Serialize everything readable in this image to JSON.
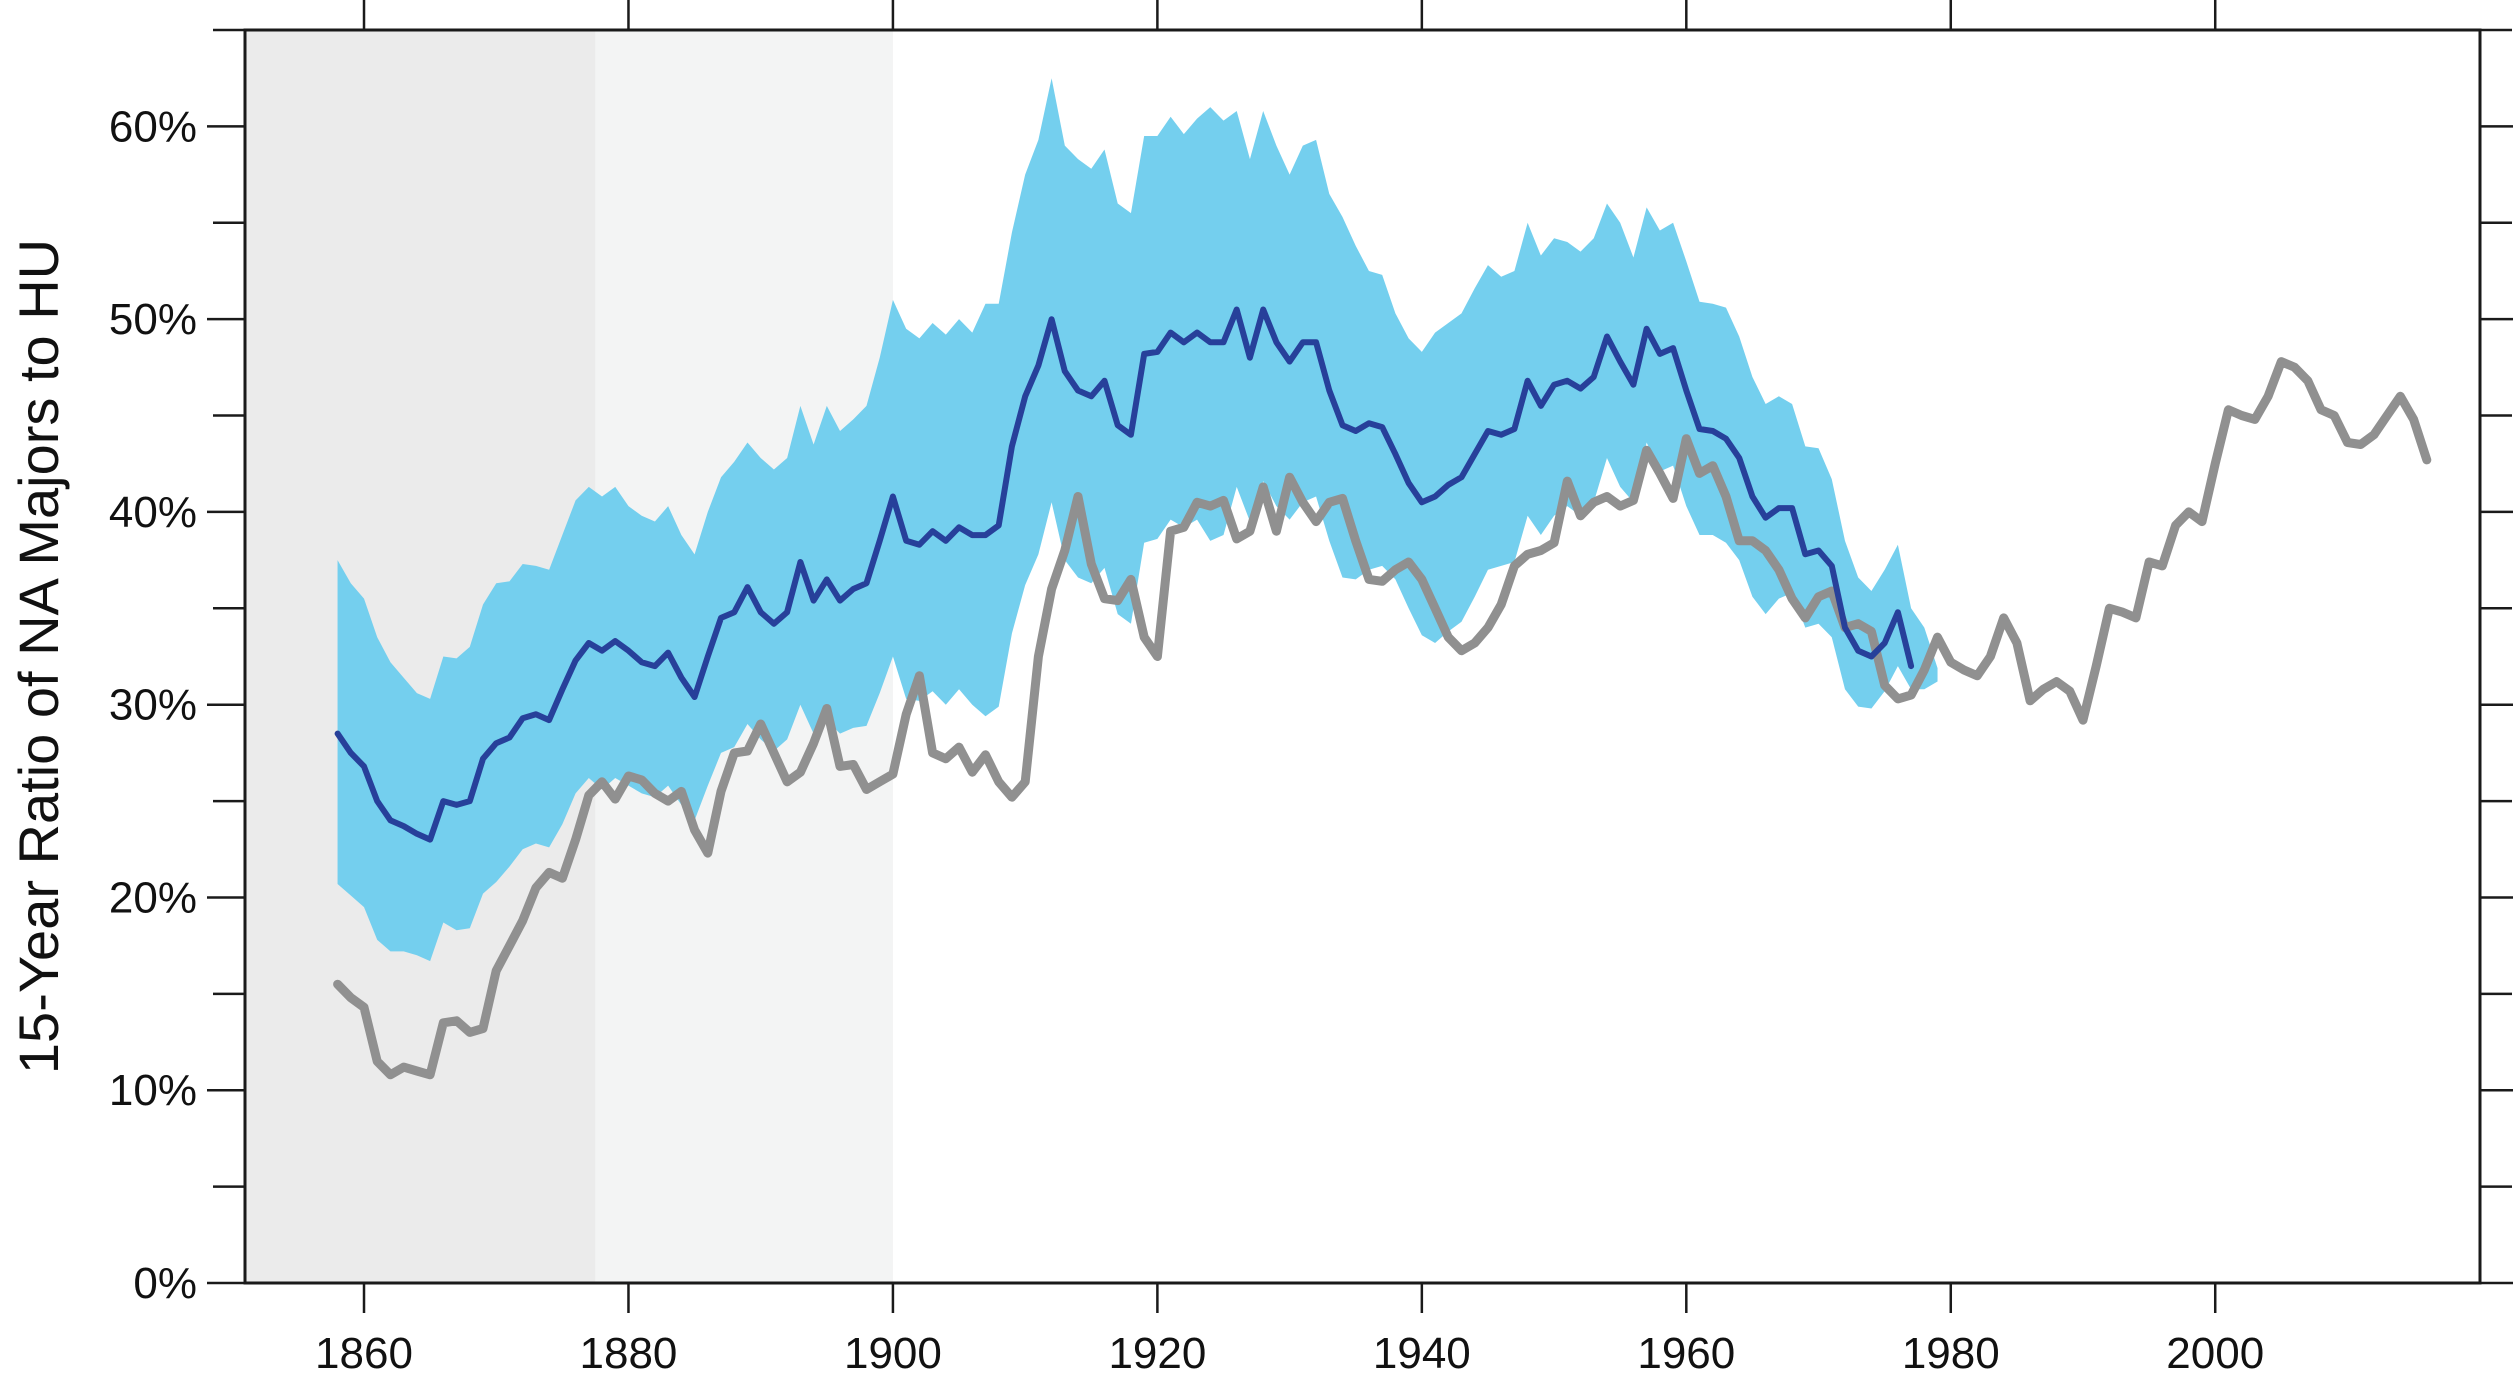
{
  "chart_data": {
    "type": "line",
    "title": "",
    "xlabel": "",
    "ylabel": "15-Year Ratio of NA Majors to HU",
    "xlim": [
      1851,
      2020
    ],
    "ylim": [
      0,
      65
    ],
    "xticks": [
      1860,
      1880,
      1900,
      1920,
      1940,
      1960,
      1980,
      2000
    ],
    "xtick_labels": [
      "1860",
      "1880",
      "1900",
      "1920",
      "1940",
      "1960",
      "1980",
      "2000"
    ],
    "yticks": [
      0,
      10,
      20,
      30,
      40,
      50,
      60
    ],
    "ytick_labels": [
      "0%",
      "10%",
      "20%",
      "30%",
      "40%",
      "50%",
      "60%"
    ],
    "shaded_periods": [
      {
        "start": 1851,
        "end": 1877.5,
        "color": "#ebebeb"
      },
      {
        "start": 1877.5,
        "end": 1900,
        "color": "#f3f4f4"
      }
    ],
    "colors": {
      "band": "#74cfee",
      "adjusted": "#27409a",
      "raw": "#909090",
      "frame": "#1a1a1a"
    },
    "series": [
      {
        "name": "raw-ratio",
        "x_start": 1858,
        "values": [
          15.5,
          14.8,
          14.3,
          11.5,
          10.8,
          11.2,
          11.0,
          10.8,
          13.5,
          13.6,
          13.0,
          13.2,
          16.2,
          17.5,
          18.8,
          20.5,
          21.3,
          21.0,
          23.0,
          25.3,
          26.0,
          25.1,
          26.3,
          26.1,
          25.4,
          25.0,
          25.5,
          23.5,
          22.3,
          25.5,
          27.5,
          27.6,
          29.0,
          27.5,
          26.0,
          26.5,
          28.0,
          29.8,
          26.8,
          26.9,
          25.6,
          26.0,
          26.4,
          29.5,
          31.5,
          27.5,
          27.2,
          27.8,
          26.5,
          27.4,
          26.0,
          25.2,
          26.0,
          32.5,
          36.0,
          38.0,
          40.8,
          37.3,
          35.5,
          35.4,
          36.5,
          33.5,
          32.5,
          39.0,
          39.2,
          40.5,
          40.3,
          40.6,
          38.6,
          39.0,
          41.3,
          39.0,
          41.8,
          40.5,
          39.5,
          40.5,
          40.7,
          38.5,
          36.5,
          36.4,
          37.0,
          37.4,
          36.5,
          35.0,
          33.5,
          32.8,
          33.2,
          34.0,
          35.2,
          37.2,
          37.8,
          38.0,
          38.4,
          41.6,
          39.8,
          40.5,
          40.8,
          40.3,
          40.6,
          43.2,
          42.0,
          40.7,
          43.8,
          42.0,
          42.4,
          40.8,
          38.5,
          38.5,
          38.0,
          37.0,
          35.5,
          34.5,
          35.6,
          35.9,
          34.0,
          34.2,
          33.8,
          31.0,
          30.3,
          30.5,
          31.8,
          33.5,
          32.2,
          31.8,
          31.5,
          32.5,
          34.5,
          33.2,
          30.2,
          30.8,
          31.2,
          30.7,
          29.2,
          32.0,
          35.0,
          34.8,
          34.5,
          37.4,
          37.2,
          39.3,
          40.0,
          39.5,
          42.5,
          45.3,
          45.0,
          44.8,
          46.0,
          47.8,
          47.5,
          46.8,
          45.3,
          45.0,
          43.6,
          43.5,
          44.0,
          45.0,
          46.0,
          44.8,
          42.7
        ]
      },
      {
        "name": "adjusted-ratio",
        "x_start": 1858,
        "values": [
          28.5,
          27.5,
          26.8,
          25.0,
          24.0,
          23.7,
          23.3,
          23.0,
          25.0,
          24.8,
          25.0,
          27.2,
          28.0,
          28.3,
          29.3,
          29.5,
          29.2,
          30.8,
          32.3,
          33.2,
          32.8,
          33.3,
          32.8,
          32.2,
          32.0,
          32.7,
          31.4,
          30.4,
          32.5,
          34.5,
          34.8,
          36.1,
          34.8,
          34.2,
          34.8,
          37.4,
          35.4,
          36.5,
          35.4,
          36.0,
          36.3,
          38.5,
          40.8,
          38.5,
          38.3,
          39.0,
          38.5,
          39.2,
          38.8,
          38.8,
          39.3,
          43.4,
          46.0,
          47.6,
          50.0,
          47.3,
          46.3,
          46.0,
          46.8,
          44.5,
          44.0,
          48.2,
          48.3,
          49.3,
          48.8,
          49.3,
          48.8,
          48.8,
          50.5,
          48.0,
          50.5,
          48.8,
          47.8,
          48.8,
          48.8,
          46.3,
          44.5,
          44.2,
          44.6,
          44.4,
          43.0,
          41.5,
          40.5,
          40.8,
          41.4,
          41.8,
          43.0,
          44.2,
          44.0,
          44.3,
          46.8,
          45.5,
          46.6,
          46.8,
          46.4,
          47.0,
          49.1,
          47.8,
          46.6,
          49.5,
          48.2,
          48.5,
          46.3,
          44.3,
          44.2,
          43.8,
          42.8,
          40.8,
          39.7,
          40.2,
          40.2,
          37.8,
          38.0,
          37.2,
          34.0,
          32.8,
          32.5,
          33.2,
          34.8,
          32.0
        ]
      }
    ],
    "band": {
      "name": "uncertainty-band",
      "x_start": 1858,
      "upper": [
        37.5,
        36.3,
        35.5,
        33.5,
        32.2,
        31.4,
        30.6,
        30.3,
        32.5,
        32.4,
        33.0,
        35.2,
        36.3,
        36.4,
        37.3,
        37.2,
        37.0,
        38.8,
        40.6,
        41.3,
        40.8,
        41.3,
        40.3,
        39.8,
        39.5,
        40.3,
        38.8,
        37.8,
        40.0,
        41.8,
        42.6,
        43.6,
        42.8,
        42.2,
        42.8,
        45.5,
        43.5,
        45.5,
        44.2,
        44.8,
        45.5,
        48.0,
        51.0,
        49.5,
        49.0,
        49.8,
        49.2,
        50.0,
        49.3,
        50.8,
        50.8,
        54.5,
        57.5,
        59.3,
        62.5,
        59.0,
        58.3,
        57.8,
        58.8,
        56.0,
        55.5,
        59.5,
        59.5,
        60.5,
        59.6,
        60.4,
        61.0,
        60.3,
        60.8,
        58.3,
        60.8,
        59.0,
        57.5,
        59.0,
        59.3,
        56.5,
        55.3,
        53.8,
        52.5,
        52.3,
        50.3,
        49.0,
        48.3,
        49.3,
        49.8,
        50.3,
        51.6,
        52.8,
        52.2,
        52.5,
        55.0,
        53.3,
        54.2,
        54.0,
        53.5,
        54.2,
        56.0,
        55.0,
        53.2,
        55.8,
        54.6,
        55.0,
        53.0,
        50.9,
        50.8,
        50.6,
        49.1,
        47.0,
        45.6,
        46.0,
        45.6,
        43.4,
        43.3,
        41.7,
        38.5,
        36.6,
        35.9,
        37.0,
        38.3,
        35.0,
        34.0,
        31.9
      ],
      "lower": [
        20.7,
        20.1,
        19.5,
        17.8,
        17.2,
        17.2,
        17.0,
        16.7,
        18.7,
        18.3,
        18.4,
        20.2,
        20.8,
        21.6,
        22.5,
        22.8,
        22.6,
        23.8,
        25.4,
        26.2,
        25.6,
        26.2,
        25.8,
        25.4,
        25.2,
        25.8,
        24.8,
        24.0,
        25.8,
        27.5,
        27.8,
        29.0,
        28.2,
        27.6,
        28.2,
        30.0,
        28.5,
        29.2,
        28.5,
        28.8,
        28.9,
        30.6,
        32.5,
        30.3,
        30.2,
        30.7,
        30.0,
        30.8,
        30.0,
        29.4,
        29.9,
        33.7,
        36.2,
        37.8,
        40.5,
        37.5,
        36.6,
        36.3,
        37.1,
        34.7,
        34.2,
        38.4,
        38.6,
        39.6,
        39.2,
        39.6,
        38.5,
        38.8,
        41.3,
        39.5,
        41.6,
        40.3,
        39.6,
        40.5,
        40.8,
        38.5,
        36.6,
        36.5,
        37.0,
        37.2,
        36.5,
        35.0,
        33.6,
        33.2,
        33.8,
        34.3,
        35.6,
        37.0,
        37.2,
        37.4,
        39.8,
        38.8,
        39.8,
        40.3,
        39.8,
        40.5,
        42.8,
        41.3,
        40.5,
        43.6,
        42.1,
        42.4,
        40.3,
        38.8,
        38.8,
        38.4,
        37.5,
        35.6,
        34.7,
        35.5,
        35.8,
        34.0,
        34.2,
        33.5,
        30.8,
        29.9,
        29.8,
        30.7,
        32.0,
        30.8,
        30.8,
        31.2
      ]
    }
  }
}
